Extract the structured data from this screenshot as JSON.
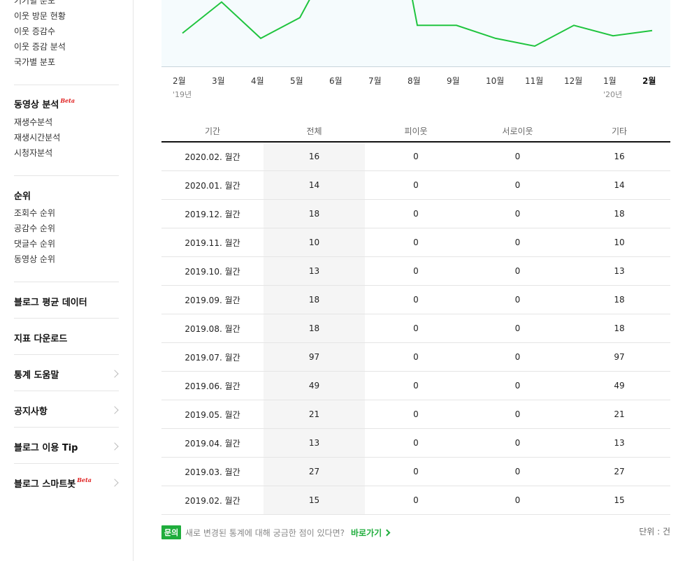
{
  "sidebar": {
    "cut_link": "기기별 분포",
    "links1": [
      "이웃 방문 현황",
      "이웃 증감수",
      "이웃 증감 분석",
      "국가별 분포"
    ],
    "video_title": "동영상 분석",
    "beta": "Beta",
    "video_links": [
      "재생수분석",
      "재생시간분석",
      "시청자분석"
    ],
    "rank_title": "순위",
    "rank_links": [
      "조회수 순위",
      "공감수 순위",
      "댓글수 순위",
      "동영상 순위"
    ],
    "sections": [
      "블로그 평균 데이터",
      "지표 다운로드",
      "통계 도움말",
      "공지사항",
      "블로그 이용 Tip",
      "블로그 스마트봇"
    ]
  },
  "chart_data": {
    "type": "line",
    "x": [
      "2월",
      "3월",
      "4월",
      "5월",
      "6월",
      "7월",
      "8월",
      "9월",
      "10월",
      "11월",
      "12월",
      "1월",
      "2월"
    ],
    "year_labels": [
      "'19년",
      "'20년"
    ],
    "series": [
      {
        "values": [
          15,
          27,
          13,
          21,
          49,
          97,
          18,
          18,
          13,
          10,
          18,
          14,
          16
        ],
        "color": "#1fc43e"
      }
    ]
  },
  "table": {
    "headers": [
      "기간",
      "전체",
      "피이웃",
      "서로이웃",
      "기타"
    ],
    "rows": [
      [
        "2020.02. 월간",
        "16",
        "0",
        "0",
        "16"
      ],
      [
        "2020.01. 월간",
        "14",
        "0",
        "0",
        "14"
      ],
      [
        "2019.12. 월간",
        "18",
        "0",
        "0",
        "18"
      ],
      [
        "2019.11. 월간",
        "10",
        "0",
        "0",
        "10"
      ],
      [
        "2019.10. 월간",
        "13",
        "0",
        "0",
        "13"
      ],
      [
        "2019.09. 월간",
        "18",
        "0",
        "0",
        "18"
      ],
      [
        "2019.08. 월간",
        "18",
        "0",
        "0",
        "18"
      ],
      [
        "2019.07. 월간",
        "97",
        "0",
        "0",
        "97"
      ],
      [
        "2019.06. 월간",
        "49",
        "0",
        "0",
        "49"
      ],
      [
        "2019.05. 월간",
        "21",
        "0",
        "0",
        "21"
      ],
      [
        "2019.04. 월간",
        "13",
        "0",
        "0",
        "13"
      ],
      [
        "2019.03. 월간",
        "27",
        "0",
        "0",
        "27"
      ],
      [
        "2019.02. 월간",
        "15",
        "0",
        "0",
        "15"
      ]
    ]
  },
  "footer": {
    "badge": "문의",
    "question": "새로 변경된 통계에 대해 궁금한 점이 있다면?",
    "link": "바로가기",
    "unit": "단위 : 건"
  }
}
